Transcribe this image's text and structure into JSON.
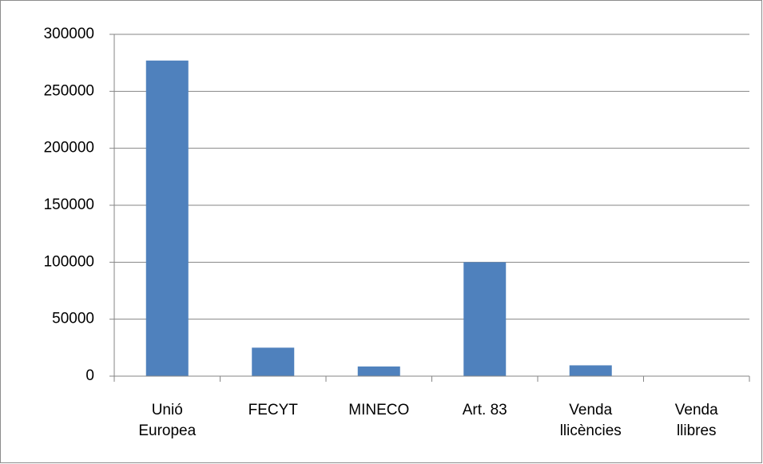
{
  "chart_data": {
    "type": "bar",
    "categories": [
      "Unió Europea",
      "FECYT",
      "MINECO",
      "Art. 83",
      "Venda llicències",
      "Venda llibres"
    ],
    "values": [
      277000,
      25000,
      8500,
      100000,
      9500,
      0
    ],
    "color": "#4f81bd",
    "ylim": [
      0,
      300000
    ],
    "yticks": [
      0,
      50000,
      100000,
      150000,
      200000,
      250000,
      300000
    ],
    "grid": true
  }
}
